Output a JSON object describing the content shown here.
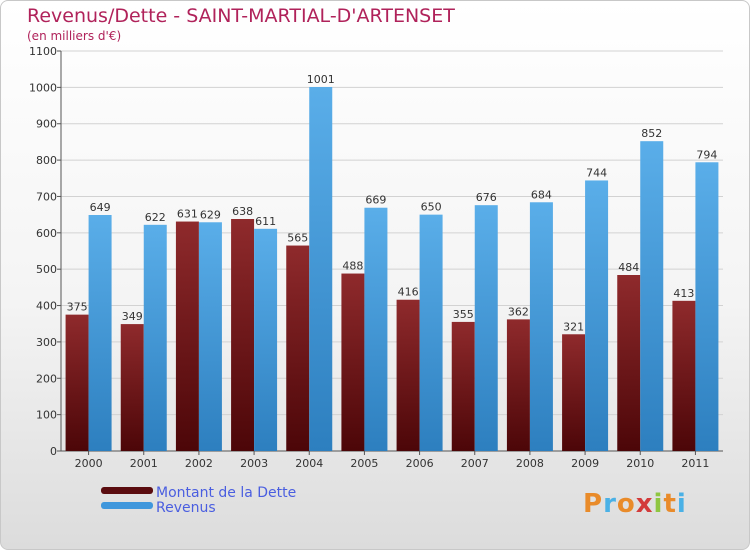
{
  "header": {
    "title": "Revenus/Dette - SAINT-MARTIAL-D'ARTENSET",
    "subtitle": "(en milliers d'€)"
  },
  "legend": {
    "dette_label": "Montant de la Dette",
    "revenus_label": "Revenus"
  },
  "logo": {
    "text": "Proxiti",
    "colors": [
      "#e98b2a",
      "#4ab1e6",
      "#e98b2a",
      "#d33b3b",
      "#8fc641",
      "#e98b2a",
      "#4ab1e6"
    ]
  },
  "colors": {
    "dette": "#7a1a1d",
    "revenus": "#4fa6e4",
    "title": "#b0225a",
    "legend_text": "#4a5ee0"
  },
  "chart_data": {
    "type": "bar",
    "title": "Revenus/Dette - SAINT-MARTIAL-D'ARTENSET",
    "subtitle": "(en milliers d'€)",
    "xlabel": "",
    "ylabel": "",
    "ylim": [
      0,
      1100
    ],
    "yticks": [
      0,
      100,
      200,
      300,
      400,
      500,
      600,
      700,
      800,
      900,
      1000,
      1100
    ],
    "grid": true,
    "legend_position": "bottom-left",
    "categories": [
      "2000",
      "2001",
      "2002",
      "2003",
      "2004",
      "2005",
      "2006",
      "2007",
      "2008",
      "2009",
      "2010",
      "2011"
    ],
    "series": [
      {
        "name": "Montant de la Dette",
        "values": [
          375,
          349,
          631,
          638,
          565,
          488,
          416,
          355,
          362,
          321,
          484,
          413
        ]
      },
      {
        "name": "Revenus",
        "values": [
          649,
          622,
          629,
          611,
          1001,
          669,
          650,
          676,
          684,
          744,
          852,
          794
        ]
      }
    ]
  }
}
